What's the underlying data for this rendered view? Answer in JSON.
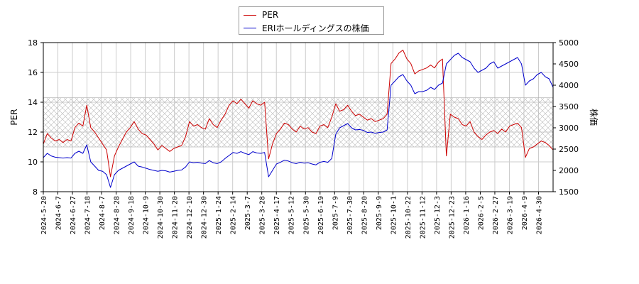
{
  "chart_data": {
    "type": "line",
    "title": "",
    "xlabel": "",
    "ylabel": "PER",
    "y2label": "株価",
    "ylim": [
      8,
      18
    ],
    "y2lim": [
      1500,
      5000
    ],
    "yticks": [
      8,
      10,
      12,
      14,
      16,
      18
    ],
    "y2ticks": [
      1500,
      2000,
      2500,
      3000,
      3500,
      4000,
      4500,
      5000
    ],
    "x_tick_labels": [
      "2024-5-20",
      "2024-6-7",
      "2024-6-27",
      "2024-7-18",
      "2024-8-7",
      "2024-8-28",
      "2024-9-18",
      "2024-10-9",
      "2024-10-30",
      "2024-11-20",
      "2024-12-10",
      "2024-12-30",
      "2025-1-24",
      "2025-2-14",
      "2025-3-7",
      "2025-3-28",
      "2025-4-17",
      "2025-5-12",
      "2025-5-30",
      "2025-6-19",
      "2025-7-9",
      "2025-7-30",
      "2025-8-20",
      "2025-9-9",
      "2025-10-1",
      "2025-10-22",
      "2025-11-12",
      "2025-12-3",
      "2025-12-23",
      "2026-1-16",
      "2026-2-5",
      "2026-2-27",
      "2026-3-19",
      "2026-4-9",
      "2026-4-30"
    ],
    "grid": true,
    "legend_position": "top-center",
    "per_band": [
      11,
      14.3
    ],
    "series": [
      {
        "name": "PER",
        "color": "#cc0000",
        "axis": "left",
        "values": [
          11.2,
          11.9,
          11.6,
          11.4,
          11.5,
          11.3,
          11.5,
          11.4,
          12.3,
          12.6,
          12.4,
          13.8,
          12.3,
          12.0,
          11.6,
          11.2,
          10.8,
          9.0,
          10.4,
          11.0,
          11.5,
          12.0,
          12.3,
          12.7,
          12.2,
          11.9,
          11.8,
          11.5,
          11.2,
          10.8,
          11.1,
          10.9,
          10.7,
          10.9,
          11.0,
          11.1,
          11.7,
          12.7,
          12.4,
          12.5,
          12.3,
          12.2,
          12.9,
          12.5,
          12.3,
          12.8,
          13.2,
          13.8,
          14.1,
          13.9,
          14.2,
          13.9,
          13.6,
          14.1,
          13.9,
          13.8,
          14.0,
          10.2,
          11.2,
          11.9,
          12.2,
          12.6,
          12.5,
          12.2,
          12.0,
          12.4,
          12.2,
          12.3,
          12.0,
          11.9,
          12.4,
          12.5,
          12.3,
          13.0,
          13.9,
          13.4,
          13.5,
          13.8,
          13.4,
          13.1,
          13.2,
          13.0,
          12.8,
          12.9,
          12.7,
          12.8,
          12.9,
          13.2,
          16.6,
          16.9,
          17.3,
          17.5,
          16.9,
          16.6,
          15.9,
          16.1,
          16.2,
          16.3,
          16.5,
          16.3,
          16.7,
          16.9,
          10.4,
          13.2,
          13.0,
          12.9,
          12.5,
          12.4,
          12.7,
          12.0,
          11.7,
          11.5,
          11.8,
          12.0,
          12.1,
          11.9,
          12.2,
          12.0,
          12.4,
          12.5,
          12.6,
          12.3,
          10.3,
          10.9,
          11.0,
          11.2,
          11.4,
          11.3,
          11.1,
          10.8
        ]
      },
      {
        "name": "ERIホールディングスの株価",
        "color": "#0000cc",
        "axis": "right",
        "values": [
          2300,
          2400,
          2340,
          2310,
          2300,
          2290,
          2300,
          2290,
          2400,
          2450,
          2400,
          2600,
          2200,
          2100,
          2000,
          1980,
          1900,
          1600,
          1900,
          2000,
          2050,
          2100,
          2150,
          2200,
          2100,
          2080,
          2050,
          2020,
          2000,
          1980,
          2000,
          1990,
          1960,
          1980,
          2000,
          2010,
          2080,
          2200,
          2180,
          2190,
          2170,
          2160,
          2230,
          2180,
          2160,
          2200,
          2280,
          2350,
          2420,
          2400,
          2440,
          2400,
          2370,
          2440,
          2410,
          2400,
          2420,
          1850,
          2000,
          2150,
          2190,
          2240,
          2220,
          2180,
          2160,
          2190,
          2170,
          2180,
          2150,
          2130,
          2190,
          2210,
          2190,
          2280,
          2850,
          3000,
          3050,
          3100,
          3000,
          2950,
          2960,
          2940,
          2890,
          2900,
          2870,
          2890,
          2900,
          2950,
          4000,
          4100,
          4200,
          4250,
          4100,
          4000,
          3800,
          3850,
          3850,
          3880,
          3950,
          3900,
          4000,
          4050,
          4500,
          4600,
          4700,
          4750,
          4650,
          4600,
          4550,
          4400,
          4300,
          4350,
          4400,
          4500,
          4550,
          4400,
          4450,
          4500,
          4550,
          4600,
          4650,
          4500,
          4000,
          4100,
          4150,
          4250,
          4300,
          4200,
          4150,
          3950
        ]
      }
    ]
  }
}
